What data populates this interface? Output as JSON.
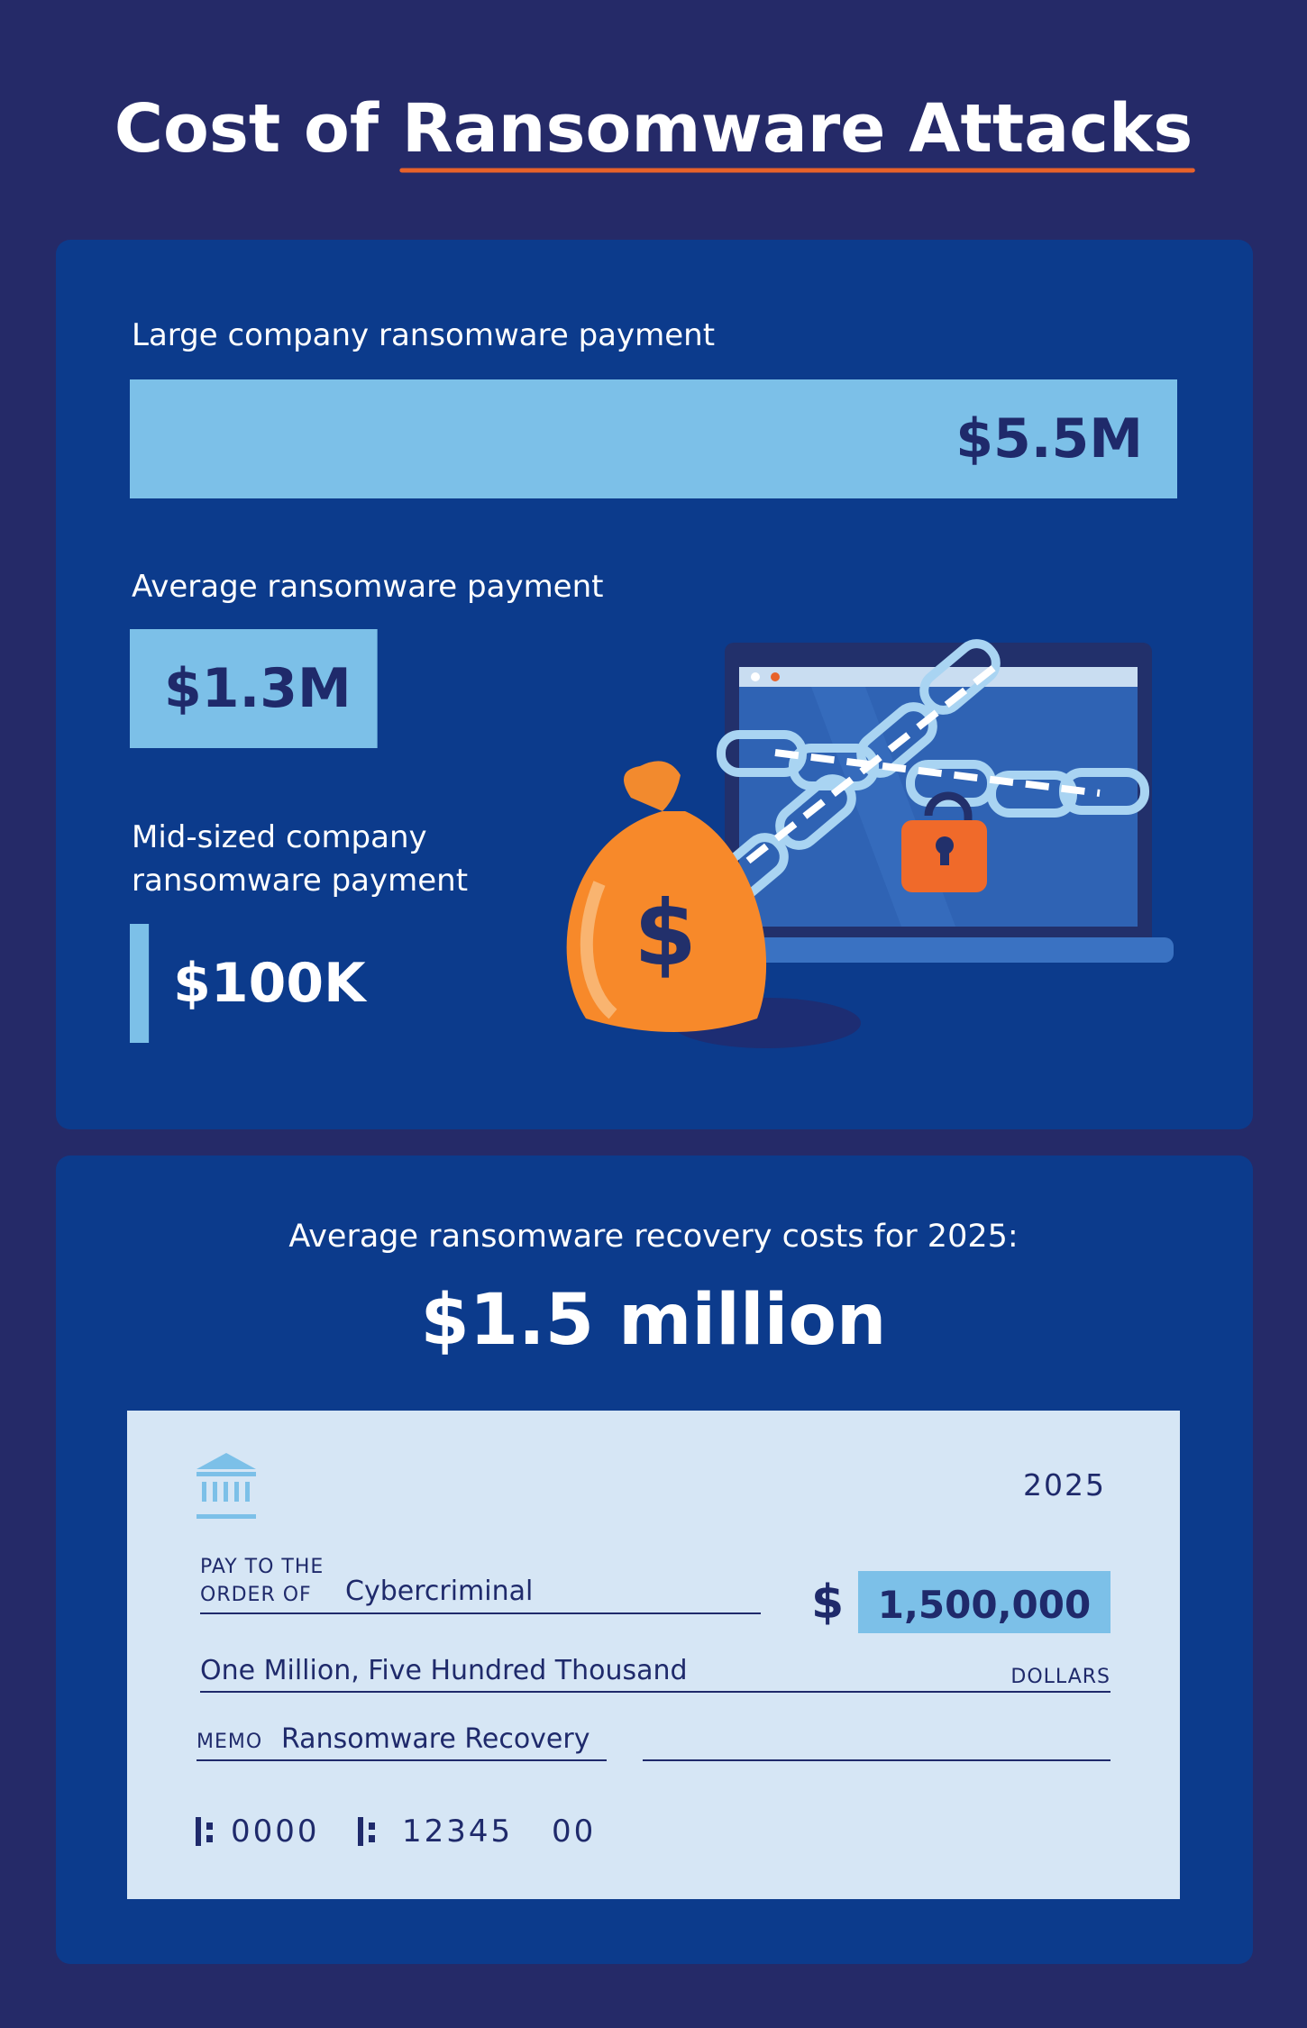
{
  "title_lead": "Cost of",
  "title_highlight": "Ransomware Attacks",
  "chart_data": {
    "type": "bar",
    "categories": [
      "Large company ransomware payment",
      "Average ransomware payment",
      "Mid-sized company ransomware payment"
    ],
    "values": [
      5500000,
      1300000,
      100000
    ],
    "value_labels": [
      "$5.5M",
      "$1.3M",
      "$100K"
    ],
    "color": "#7cc0e8"
  },
  "recovery": {
    "caption": "Average ransomware recovery costs for 2025:",
    "amount": "$1.5 million"
  },
  "check": {
    "year": "2025",
    "pay_to_line1": "PAY TO THE",
    "pay_to_line2": "ORDER OF",
    "payee": "Cybercriminal",
    "currency": "$",
    "amount": "1,500,000",
    "amount_words": "One Million, Five Hundred Thousand",
    "dollars": "DOLLARS",
    "memo_label": "MEMO",
    "memo": "Ransomware Recovery",
    "micr": [
      "0000",
      "12345",
      "00"
    ]
  }
}
